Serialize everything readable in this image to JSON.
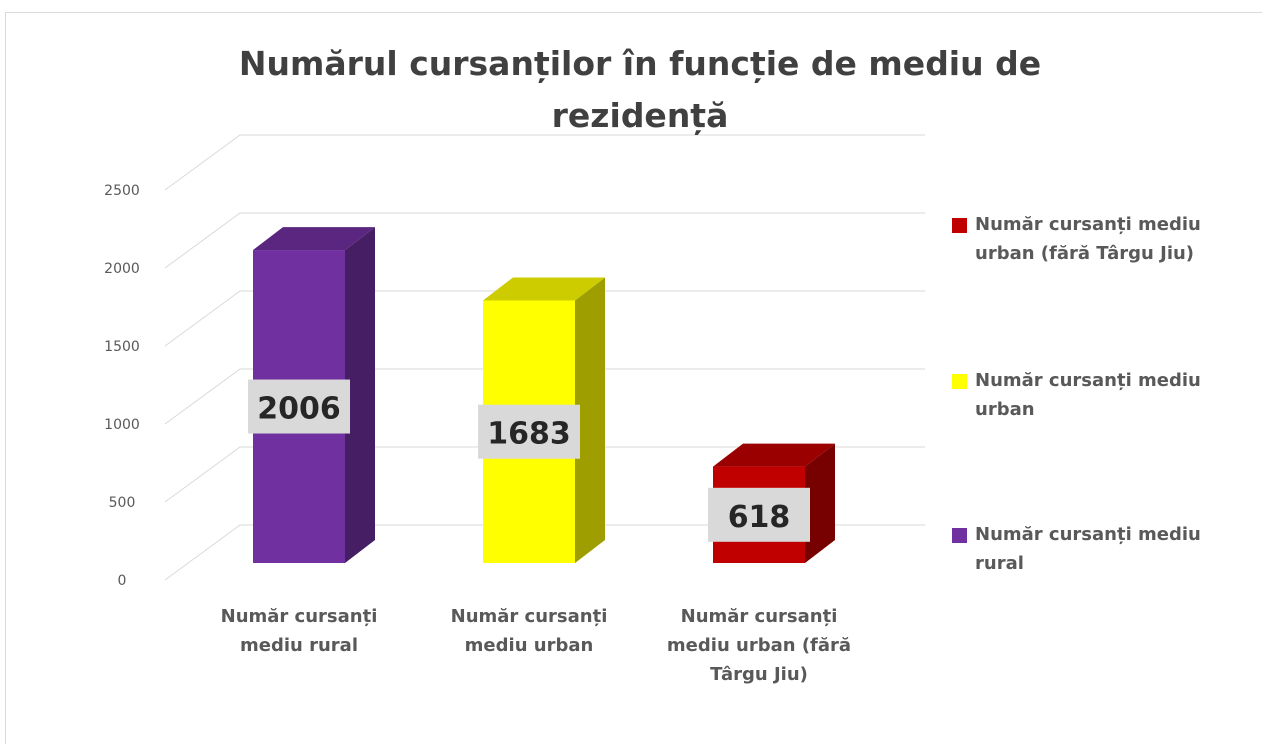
{
  "chart_data": {
    "type": "bar3d",
    "title": "Numărul cursanților în funcție de mediu de rezidență",
    "categories": [
      "Număr cursanți mediu rural",
      "Număr cursanți mediu urban",
      "Număr cursanți mediu urban (fără Târgu Jiu)"
    ],
    "values": [
      2006,
      1683,
      618
    ],
    "colors": [
      "#7030a0",
      "#ffff00",
      "#c00000"
    ],
    "ylim": [
      0,
      2500
    ],
    "yticks": [
      0,
      500,
      1000,
      1500,
      2000,
      2500
    ],
    "grid": true,
    "legend": "right"
  }
}
